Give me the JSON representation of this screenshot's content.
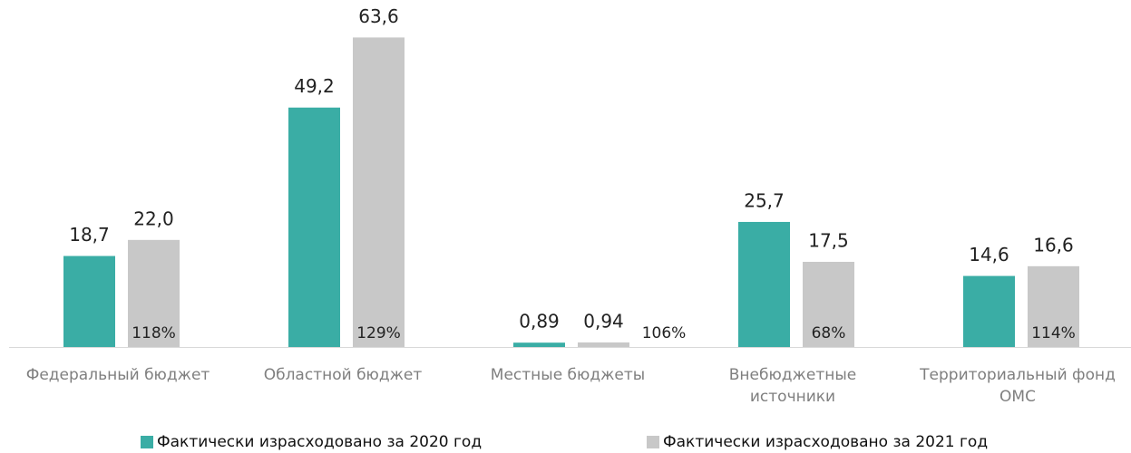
{
  "chart_data": {
    "type": "bar",
    "categories": [
      "Федеральный бюджет",
      "Областной бюджет",
      "Местные бюджеты",
      "Внебюджетные источники",
      "Территориальный фонд ОМС"
    ],
    "series": [
      {
        "name": "Фактически израсходовано за 2020 год",
        "color": "#3aada5",
        "values": [
          18.7,
          49.2,
          0.89,
          25.7,
          14.6
        ],
        "value_labels": [
          "18,7",
          "49,2",
          "0,89",
          "25,7",
          "14,6"
        ]
      },
      {
        "name": "Фактически израсходовано за 2021 год",
        "color": "#c8c8c8",
        "values": [
          22.0,
          63.6,
          0.94,
          17.5,
          16.6
        ],
        "value_labels": [
          "22,0",
          "63,6",
          "0,94",
          "17,5",
          "16,6"
        ]
      }
    ],
    "ratio_labels": [
      "118%",
      "129%",
      "106%",
      "68%",
      "114%"
    ],
    "ylim": [
      0,
      70
    ]
  }
}
